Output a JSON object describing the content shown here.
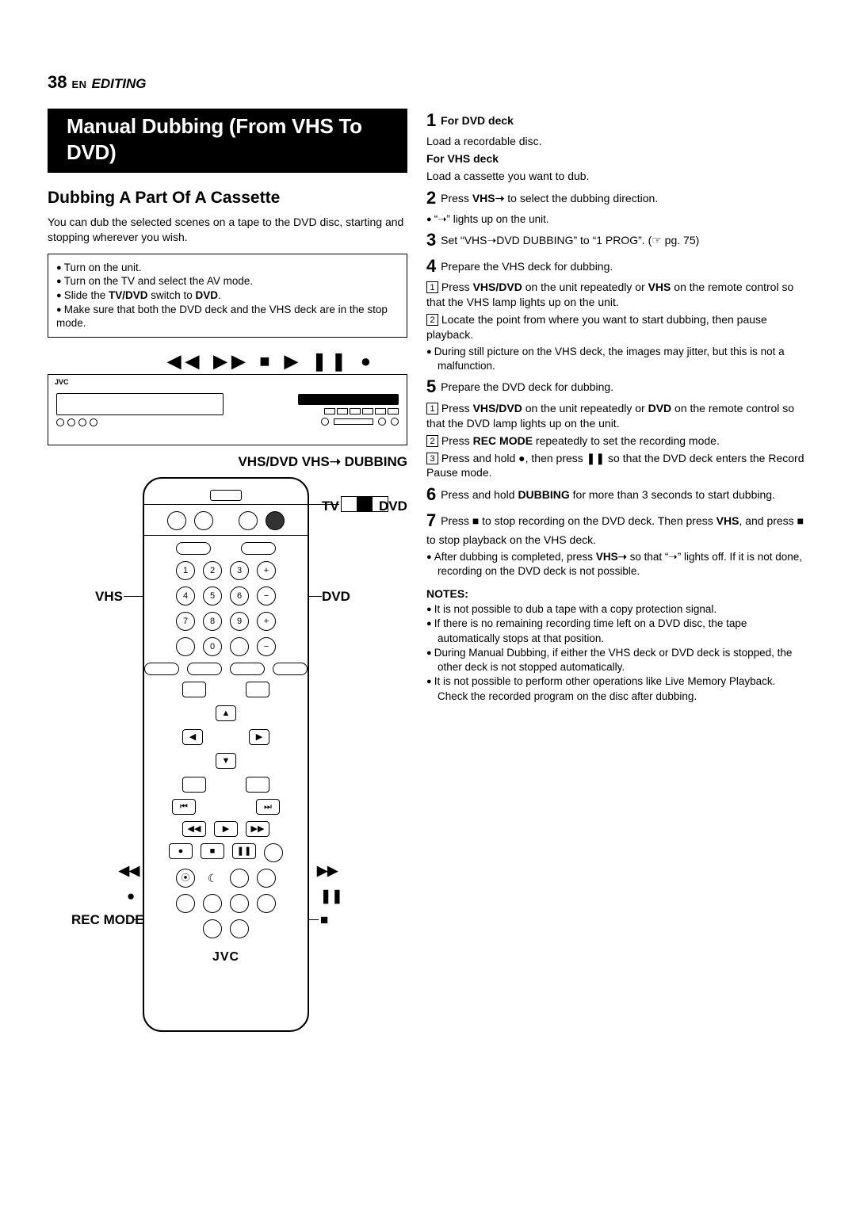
{
  "page": {
    "num": "38",
    "lang": "EN",
    "section": "EDITING"
  },
  "left": {
    "banner": "Manual Dubbing (From VHS To DVD)",
    "subtitle": "Dubbing A Part Of A Cassette",
    "intro": "You can dub the selected scenes on a tape to the DVD disc, starting and stopping wherever you wish.",
    "setup": [
      "Turn on the unit.",
      "Turn on the TV and select the AV mode.",
      "Slide the <b>TV/DVD</b> switch to <b>DVD</b>.",
      "Make sure that both the DVD deck and the VHS deck are in the stop mode."
    ],
    "deck_symbols": "◀◀ ▶▶  ■ ▶ ❚❚ ●",
    "labels_row": "VHS/DVD   VHS➝   DUBBING",
    "remote_labels": {
      "vhs": "VHS",
      "dvd": "DVD",
      "rew": "◀◀",
      "ff": "▶▶",
      "rec": "●",
      "pause": "❚❚",
      "recmode": "REC MODE",
      "stop": "■",
      "tv": "TV",
      "dvd_sw": "DVD",
      "jvc": "JVC"
    }
  },
  "right": {
    "s1_head_dvd": "For DVD deck",
    "s1_body_dvd": "Load a recordable disc.",
    "s1_head_vhs": "For VHS deck",
    "s1_body_vhs": "Load a cassette you want to dub.",
    "s2": "Press <b>VHS➝</b> to select the dubbing direction.",
    "s2_note": "“➝” lights up on the unit.",
    "s3": "Set “VHS➝DVD DUBBING” to “1 PROG”. (☞ pg. 75)",
    "s4": "Prepare the VHS deck for dubbing.",
    "s4_1": "Press <b>VHS/DVD</b> on the unit repeatedly or <b>VHS</b> on the remote control so that the VHS lamp lights up on the unit.",
    "s4_2": "Locate the point from where you want to start dubbing, then pause playback.",
    "s4_note": "During still picture on the VHS deck, the images may jitter, but this is not a malfunction.",
    "s5": "Prepare the DVD deck for dubbing.",
    "s5_1": "Press <b>VHS/DVD</b> on the unit repeatedly or <b>DVD</b> on the remote control so that the DVD lamp lights up on the unit.",
    "s5_2": "Press <b>REC MODE</b> repeatedly to set the recording mode.",
    "s5_3": "Press and hold ●, then press ❚❚ so that the DVD deck enters the Record Pause mode.",
    "s6": "Press and hold <b>DUBBING</b> for more than 3 seconds to start dubbing.",
    "s7": "Press ■ to stop recording on the DVD deck. Then press <b>VHS</b>, and press ■ to stop playback on the VHS deck.",
    "s7_note": "After dubbing is completed, press <b>VHS➝</b> so that “➝” lights off. If it is not done, recording on the DVD deck is not possible.",
    "notes_head": "NOTES:",
    "notes": [
      "It is not possible to dub a tape with a copy protection signal.",
      "If there is no remaining recording time left on a DVD disc, the tape automatically stops at that position.",
      "During Manual Dubbing, if either the VHS deck or DVD deck is stopped, the other deck is not stopped automatically.",
      "It is not possible to perform other operations like Live Memory Playback. Check the recorded program on the disc after dubbing."
    ]
  },
  "nums": {
    "1": "1",
    "2": "2",
    "3": "3",
    "4": "4",
    "5": "5",
    "6": "6",
    "7": "7",
    "8": "8",
    "9": "9",
    "0": "0",
    "plus": "+",
    "minus": "−"
  },
  "colors": {
    "accent": "#000000",
    "bg": "#ffffff"
  }
}
